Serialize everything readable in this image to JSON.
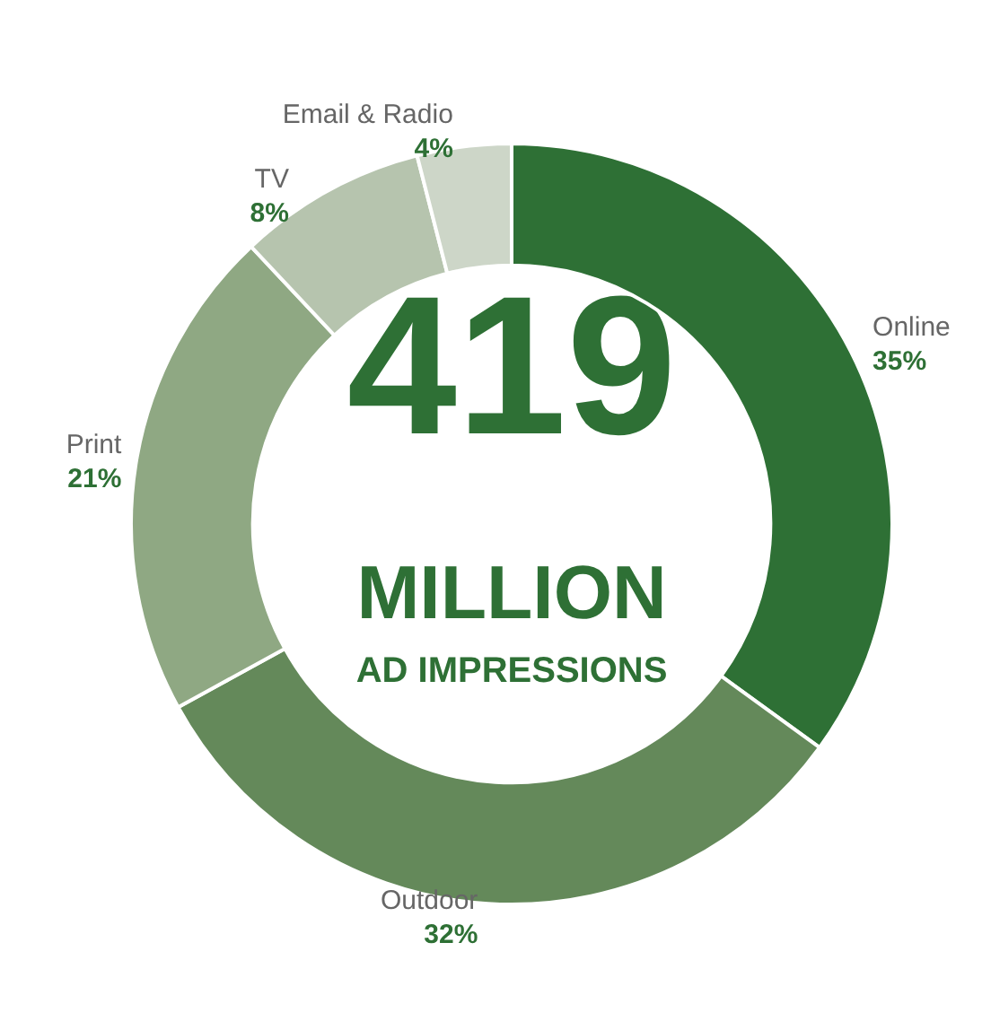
{
  "chart_data": {
    "type": "donut",
    "categories": [
      "Online",
      "Outdoor",
      "Print",
      "TV",
      "Email & Radio"
    ],
    "values": [
      35,
      32,
      21,
      8,
      4
    ],
    "colors": [
      "#2e7035",
      "#64895a",
      "#8fa883",
      "#b6c4ae",
      "#cdd6c8"
    ],
    "annotations": [
      "419",
      "MILLION",
      "AD IMPRESSIONS"
    ],
    "value_labels": [
      "35%",
      "32%",
      "21%",
      "8%",
      "4%"
    ]
  }
}
